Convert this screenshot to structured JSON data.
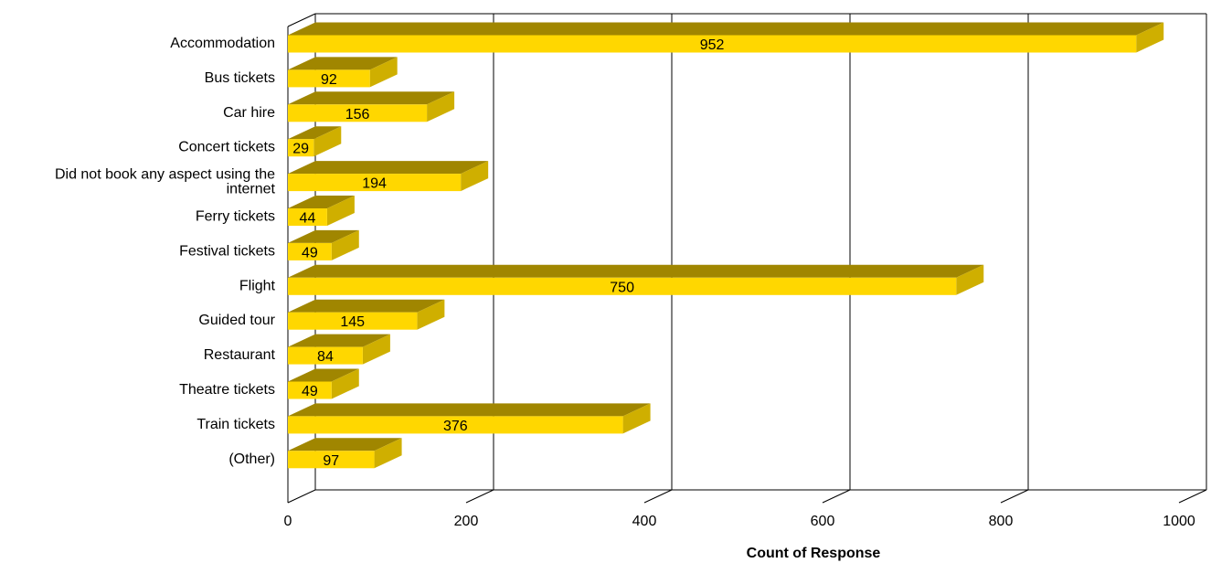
{
  "chart_data": {
    "type": "bar",
    "orientation": "horizontal",
    "three_d": true,
    "categories": [
      "Accommodation",
      "Bus tickets",
      "Car hire",
      "Concert tickets",
      "Did not book any aspect using the internet",
      "Ferry tickets",
      "Festival tickets",
      "Flight",
      "Guided tour",
      "Restaurant",
      "Theatre tickets",
      "Train tickets",
      "(Other)"
    ],
    "category_label_lines": [
      [
        "Accommodation"
      ],
      [
        "Bus tickets"
      ],
      [
        "Car hire"
      ],
      [
        "Concert tickets"
      ],
      [
        "Did not book any aspect using the",
        "internet"
      ],
      [
        "Ferry tickets"
      ],
      [
        "Festival tickets"
      ],
      [
        "Flight"
      ],
      [
        "Guided tour"
      ],
      [
        "Restaurant"
      ],
      [
        "Theatre tickets"
      ],
      [
        "Train tickets"
      ],
      [
        "(Other)"
      ]
    ],
    "values": [
      952,
      92,
      156,
      29,
      194,
      44,
      49,
      750,
      145,
      84,
      49,
      376,
      97
    ],
    "xlim": [
      0,
      1000
    ],
    "xticks": [
      "0",
      "200",
      "400",
      "600",
      "800",
      "1000"
    ],
    "xlabel": "Count of Response",
    "ylabel": "",
    "title": "",
    "grid": true,
    "legend": false,
    "data_labels": true,
    "colors": {
      "bar_front": "#ffd700",
      "bar_top": "#a08600",
      "bar_side": "#cfaf00",
      "grid": "#000000",
      "text": "#000000"
    }
  }
}
